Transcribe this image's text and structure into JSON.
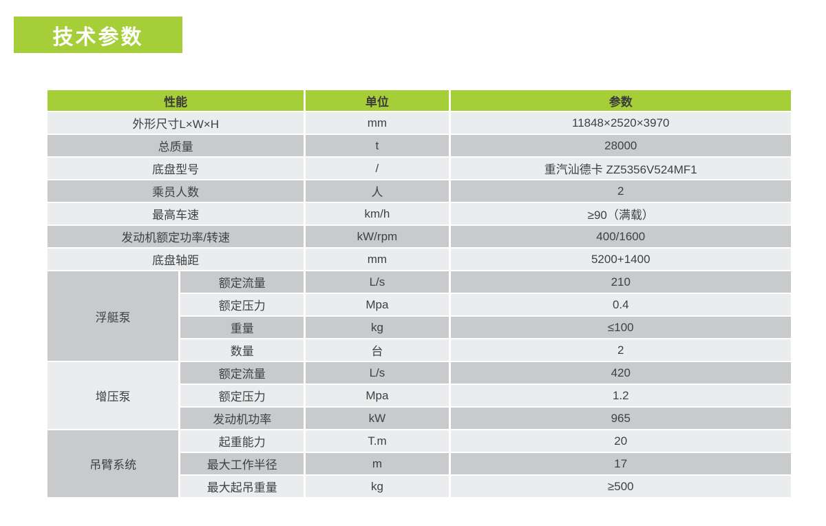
{
  "page": {
    "title": "技术参数"
  },
  "colors": {
    "green": "#A6CE39",
    "row_light": "#EAECED",
    "row_dark": "#C9CACC",
    "text_dark": "#3E4042",
    "page_bg": "#FFFFFF"
  },
  "table": {
    "headers": [
      "性能",
      "单位",
      "参数"
    ],
    "simple_rows": [
      {
        "label": "外形尺寸L×W×H",
        "unit": "mm",
        "value": "11848×2520×3970"
      },
      {
        "label": "总质量",
        "unit": "t",
        "value": "28000"
      },
      {
        "label": "底盘型号",
        "unit": "/",
        "value": "重汽汕德卡 ZZ5356V524MF1"
      },
      {
        "label": "乘员人数",
        "unit": "人",
        "value": "2"
      },
      {
        "label": "最高车速",
        "unit": "km/h",
        "value": "≥90（满载）"
      },
      {
        "label": "发动机额定功率/转速",
        "unit": "kW/rpm",
        "value": "400/1600"
      },
      {
        "label": "底盘轴距",
        "unit": "mm",
        "value": "5200+1400"
      }
    ],
    "groups": [
      {
        "name": "浮艇泵",
        "rows": [
          {
            "label": "额定流量",
            "unit": "L/s",
            "value": "210"
          },
          {
            "label": "额定压力",
            "unit": "Mpa",
            "value": "0.4"
          },
          {
            "label": "重量",
            "unit": "kg",
            "value": "≤100"
          },
          {
            "label": "数量",
            "unit": "台",
            "value": "2"
          }
        ]
      },
      {
        "name": "增压泵",
        "rows": [
          {
            "label": "额定流量",
            "unit": "L/s",
            "value": "420"
          },
          {
            "label": "额定压力",
            "unit": "Mpa",
            "value": "1.2"
          },
          {
            "label": "发动机功率",
            "unit": "kW",
            "value": "965"
          }
        ]
      },
      {
        "name": "吊臂系统",
        "rows": [
          {
            "label": "起重能力",
            "unit": "T.m",
            "value": "20"
          },
          {
            "label": "最大工作半径",
            "unit": "m",
            "value": "17"
          },
          {
            "label": "最大起吊重量",
            "unit": "kg",
            "value": "≥500"
          }
        ]
      }
    ]
  }
}
